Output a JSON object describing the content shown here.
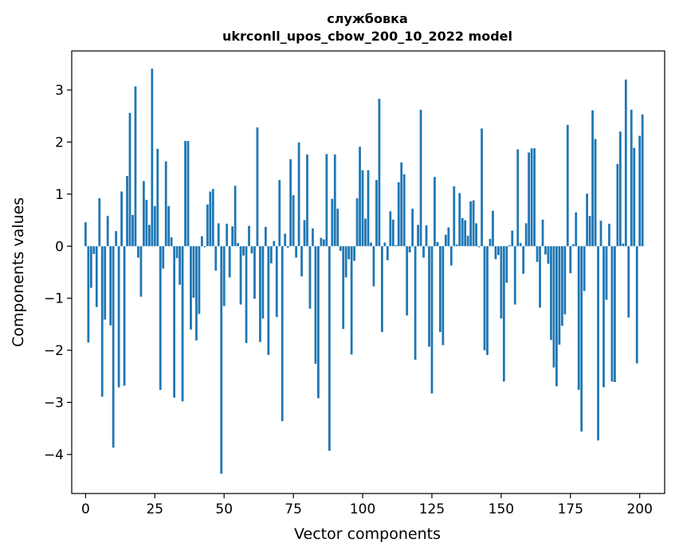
{
  "chart_data": {
    "type": "bar",
    "title_line1": "службовка",
    "title_line2": "ukrconll_upos_cbow_200_10_2022 model",
    "xlabel": "Vector components",
    "ylabel": "Components values",
    "xlim": [
      -5,
      209
    ],
    "ylim": [
      -4.75,
      3.75
    ],
    "xticks": [
      0,
      25,
      50,
      75,
      100,
      125,
      150,
      175,
      200
    ],
    "yticks": [
      -4,
      -3,
      -2,
      -1,
      0,
      1,
      2,
      3
    ],
    "color": "#1f77b4",
    "values": [
      0.46,
      -1.85,
      -0.8,
      -0.15,
      -1.17,
      0.92,
      -2.89,
      -1.41,
      0.58,
      -1.52,
      -3.87,
      0.29,
      -2.71,
      1.05,
      -2.68,
      1.35,
      2.56,
      0.6,
      3.07,
      -0.22,
      -0.97,
      1.25,
      0.89,
      0.41,
      3.41,
      0.77,
      1.87,
      -2.76,
      -0.43,
      1.63,
      0.77,
      0.17,
      -2.91,
      -0.23,
      -0.74,
      -2.98,
      2.02,
      2.02,
      -1.6,
      -0.99,
      -1.81,
      -1.3,
      0.19,
      -0.02,
      0.8,
      1.05,
      1.1,
      -0.47,
      0.44,
      -4.37,
      -1.15,
      0.43,
      -0.6,
      0.38,
      1.16,
      0.06,
      -1.12,
      -0.18,
      -1.86,
      0.39,
      -0.14,
      -1.01,
      2.28,
      -1.84,
      -1.39,
      0.37,
      -2.09,
      -0.33,
      0.1,
      -1.36,
      1.27,
      -3.36,
      0.24,
      -0.03,
      1.67,
      0.98,
      -0.22,
      1.99,
      -0.58,
      0.5,
      1.76,
      -1.2,
      0.34,
      -2.26,
      -2.92,
      0.16,
      0.13,
      1.77,
      -3.93,
      0.91,
      1.76,
      0.72,
      -0.09,
      -1.59,
      -0.6,
      -0.25,
      -2.08,
      -0.28,
      0.92,
      1.91,
      1.46,
      0.53,
      1.46,
      0.07,
      -0.77,
      1.27,
      2.83,
      -1.65,
      0.07,
      -0.27,
      0.67,
      0.51,
      0.02,
      1.23,
      1.61,
      1.38,
      -1.33,
      -0.12,
      0.72,
      -2.18,
      0.41,
      2.62,
      -0.22,
      0.4,
      -1.93,
      -2.83,
      1.33,
      0.08,
      -1.65,
      -1.9,
      0.22,
      0.36,
      -0.37,
      1.15,
      0.03,
      1.02,
      0.54,
      0.5,
      0.2,
      0.86,
      0.88,
      0.44,
      -0.02,
      2.26,
      -2.0,
      -2.09,
      0.14,
      0.68,
      -0.25,
      -0.17,
      -1.39,
      -2.6,
      -0.7,
      0.02,
      0.3,
      -1.12,
      1.86,
      0.06,
      -0.53,
      0.44,
      1.8,
      1.88,
      1.88,
      -0.3,
      -1.18,
      0.51,
      -0.16,
      -0.34,
      -1.8,
      -2.33,
      -2.69,
      -1.89,
      -1.53,
      -1.31,
      2.33,
      -0.52,
      0.04,
      0.65,
      -2.76,
      -3.56,
      -0.86,
      1.01,
      0.58,
      2.61,
      2.06,
      -3.73,
      0.49,
      -2.71,
      -1.03,
      0.43,
      -2.6,
      -2.61,
      1.58,
      2.2,
      0.05,
      3.2,
      -1.37,
      2.62,
      1.89,
      -2.25,
      2.12,
      2.53
    ]
  }
}
